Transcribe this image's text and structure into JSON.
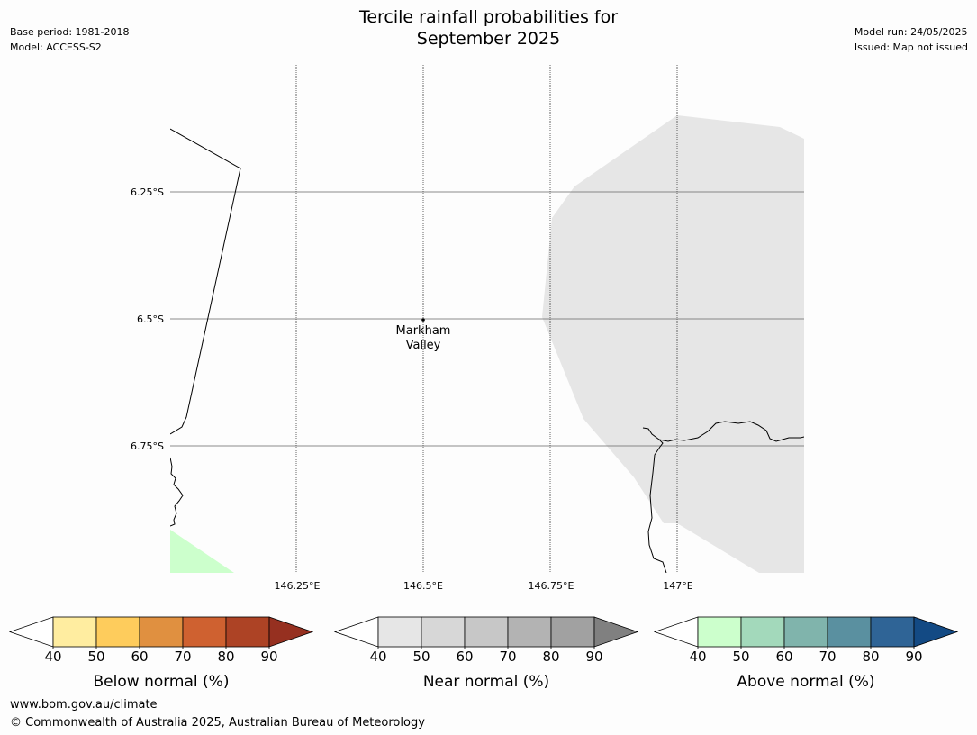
{
  "header": {
    "base_period": "Base period: 1981-2018",
    "model": "Model: ACCESS-S2",
    "title_line1": "Tercile rainfall probabilities for",
    "title_line2": "September 2025",
    "model_run": "Model run: 24/05/2025",
    "issued": "Issued: Map not issued"
  },
  "map": {
    "lat_labels": [
      "6.25°S",
      "6.5°S",
      "6.75°S"
    ],
    "lon_labels": [
      "146.25°E",
      "146.5°E",
      "146.75°E",
      "147°E"
    ],
    "place_name_line1": "Markham",
    "place_name_line2": "Valley",
    "near_normal_color": "#e6e6e6",
    "above_normal_color": "#ccffcc"
  },
  "colorbars": [
    {
      "label": "Below normal (%)",
      "ticks": [
        "40",
        "50",
        "60",
        "70",
        "80",
        "90"
      ],
      "colors": [
        "#ffeda0",
        "#fecc5c",
        "#e09040",
        "#cf6130",
        "#ad4325",
        "#963020"
      ]
    },
    {
      "label": "Near normal (%)",
      "ticks": [
        "40",
        "50",
        "60",
        "70",
        "80",
        "90"
      ],
      "colors": [
        "#e6e6e6",
        "#d7d7d7",
        "#c7c7c7",
        "#b3b3b3",
        "#a1a1a1",
        "#808080"
      ]
    },
    {
      "label": "Above normal (%)",
      "ticks": [
        "40",
        "50",
        "60",
        "70",
        "80",
        "90"
      ],
      "colors": [
        "#ccffcc",
        "#a3d9bb",
        "#80b4ac",
        "#5a90a0",
        "#2f6496",
        "#134a84"
      ]
    }
  ],
  "footer": {
    "url": "www.bom.gov.au/climate",
    "copyright": "© Commonwealth of Australia 2025, Australian Bureau of Meteorology"
  }
}
